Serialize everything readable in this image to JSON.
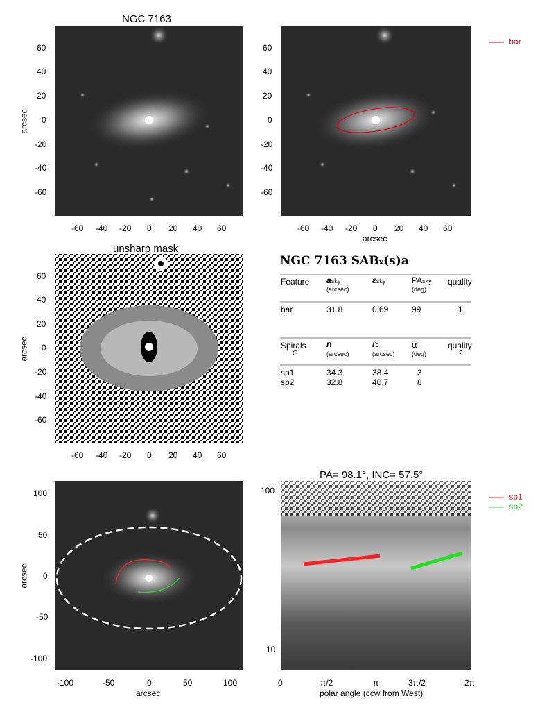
{
  "panel1": {
    "title": "NGC 7163",
    "ylabel": "arcsec",
    "yticks": [
      "60",
      "40",
      "20",
      "0",
      "-20",
      "-40",
      "-60"
    ],
    "xticks": [
      "-60",
      "-40",
      "-20",
      "0",
      "20",
      "40",
      "60"
    ]
  },
  "panel2": {
    "xlabel": "arcsec",
    "yticks": [
      "60",
      "40",
      "20",
      "0",
      "-20",
      "-40",
      "-60"
    ],
    "xticks": [
      "-60",
      "-40",
      "-20",
      "0",
      "20",
      "40",
      "60"
    ],
    "legend": "bar",
    "bar_color": "#e0001a"
  },
  "panel3": {
    "title": "unsharp mask",
    "ylabel": "arcsec",
    "yticks": [
      "60",
      "40",
      "20",
      "0",
      "-20",
      "-40",
      "-60"
    ],
    "xticks": [
      "-60",
      "-40",
      "-20",
      "0",
      "20",
      "40",
      "60"
    ]
  },
  "table": {
    "title": "NGC 7163  SAB",
    "title_sub": "x",
    "title_tail": "(s)a",
    "bar_header": {
      "feature": "Feature",
      "a": "a",
      "a_sub": "sky",
      "a_unit": "(arcsec)",
      "eps": "ε",
      "eps_sub": "sky",
      "pa": "PA",
      "pa_sub": "sky",
      "pa_unit": "(deg)",
      "quality": "quality"
    },
    "bar_row": {
      "name": "bar",
      "a": "31.8",
      "eps": "0.69",
      "pa": "99",
      "quality": "1"
    },
    "spiral_header": {
      "feature": "Spirals",
      "feature2": "G",
      "ri": "r",
      "ri_sub": "i",
      "ri_unit": "(arcsec)",
      "ro": "r",
      "ro_sub": "o",
      "ro_unit": "(arcsec)",
      "alpha": "α",
      "alpha_unit": "(deg)",
      "quality": "quality",
      "quality_val": "2"
    },
    "spiral_rows": [
      {
        "name": "sp1",
        "ri": "34.3",
        "ro": "38.4",
        "alpha": "3"
      },
      {
        "name": "sp2",
        "ri": "32.8",
        "ro": "40.7",
        "alpha": "8"
      }
    ]
  },
  "panel5": {
    "ylabel": "arcsec",
    "xlabel": "arcsec",
    "yticks": [
      "100",
      "50",
      "0",
      "-50",
      "-100"
    ],
    "xticks": [
      "-100",
      "-50",
      "0",
      "50",
      "100"
    ]
  },
  "panel6": {
    "title": "PA=  98.1°, INC=  57.5°",
    "xlabel": "polar angle (ccw from West)",
    "yticks": [
      "100",
      "10"
    ],
    "xticks": [
      "0",
      "π/2",
      "π",
      "3π/2",
      "2π"
    ],
    "legend": [
      {
        "name": "sp1",
        "color": "#ff2020"
      },
      {
        "name": "sp2",
        "color": "#20e020"
      }
    ]
  }
}
